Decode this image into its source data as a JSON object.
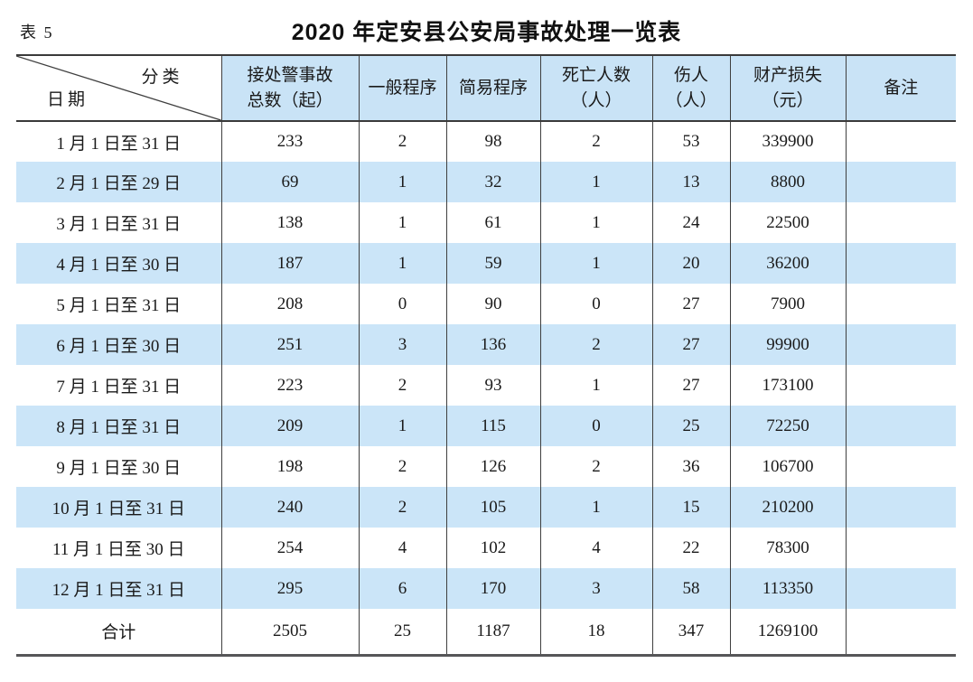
{
  "page": {
    "table_label": "表 5",
    "title": "2020 年定安县公安局事故处理一览表"
  },
  "table": {
    "corner_top_right": "分类",
    "corner_bottom_left": "日期",
    "columns": [
      "接处警事故\n总数（起）",
      "一般程序",
      "简易程序",
      "死亡人数\n（人）",
      "伤人\n（人）",
      "财产损失\n（元）",
      "备注"
    ],
    "rows": [
      {
        "date": "1 月 1 日至 31 日",
        "values": [
          "233",
          "2",
          "98",
          "2",
          "53",
          "339900",
          ""
        ]
      },
      {
        "date": "2 月 1 日至 29 日",
        "values": [
          "69",
          "1",
          "32",
          "1",
          "13",
          "8800",
          ""
        ]
      },
      {
        "date": "3 月 1 日至 31 日",
        "values": [
          "138",
          "1",
          "61",
          "1",
          "24",
          "22500",
          ""
        ]
      },
      {
        "date": "4 月 1 日至 30 日",
        "values": [
          "187",
          "1",
          "59",
          "1",
          "20",
          "36200",
          ""
        ]
      },
      {
        "date": "5 月 1 日至 31 日",
        "values": [
          "208",
          "0",
          "90",
          "0",
          "27",
          "7900",
          ""
        ]
      },
      {
        "date": "6 月 1 日至 30 日",
        "values": [
          "251",
          "3",
          "136",
          "2",
          "27",
          "99900",
          ""
        ]
      },
      {
        "date": "7 月 1 日至 31 日",
        "values": [
          "223",
          "2",
          "93",
          "1",
          "27",
          "173100",
          ""
        ]
      },
      {
        "date": "8 月 1 日至 31 日",
        "values": [
          "209",
          "1",
          "115",
          "0",
          "25",
          "72250",
          ""
        ]
      },
      {
        "date": "9 月 1 日至 30 日",
        "values": [
          "198",
          "2",
          "126",
          "2",
          "36",
          "106700",
          ""
        ]
      },
      {
        "date": "10 月 1 日至 31 日",
        "values": [
          "240",
          "2",
          "105",
          "1",
          "15",
          "210200",
          ""
        ]
      },
      {
        "date": "11 月 1 日至 30 日",
        "values": [
          "254",
          "4",
          "102",
          "4",
          "22",
          "78300",
          ""
        ]
      },
      {
        "date": "12 月 1 日至 31 日",
        "values": [
          "295",
          "6",
          "170",
          "3",
          "58",
          "113350",
          ""
        ]
      }
    ],
    "total": {
      "label": "合计",
      "values": [
        "2505",
        "25",
        "1187",
        "18",
        "347",
        "1269100",
        ""
      ]
    }
  },
  "colors": {
    "row_alt_blue": "#cbe5f8",
    "header_blue": "#c9e3f6",
    "border_dark": "#3f3f3f",
    "text": "#1a1a1a"
  }
}
